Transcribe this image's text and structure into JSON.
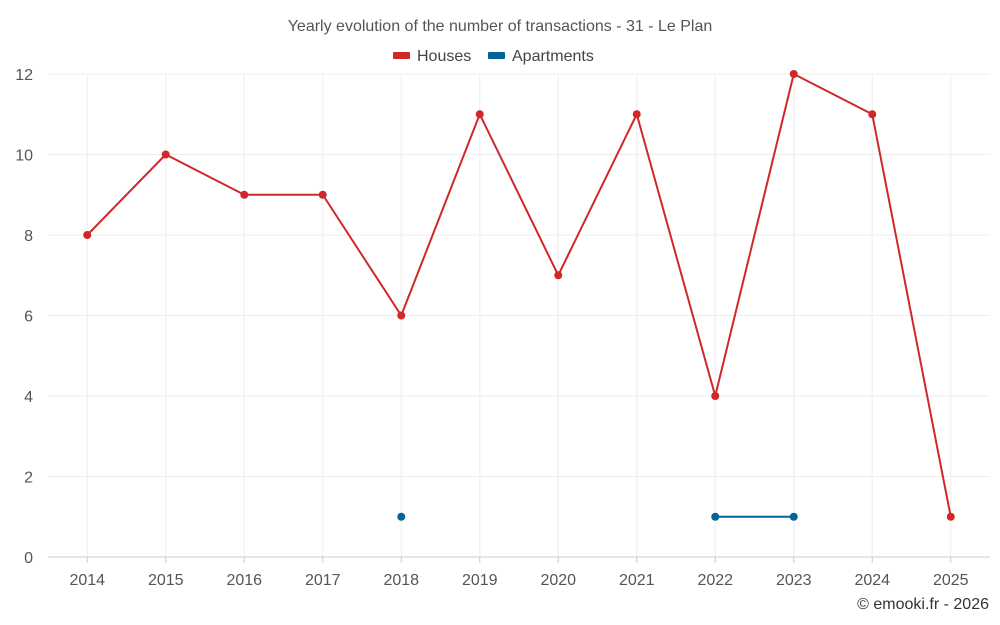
{
  "chart_data": {
    "type": "line",
    "title": "Yearly evolution of the number of transactions - 31 - Le Plan",
    "categories": [
      "2014",
      "2015",
      "2016",
      "2017",
      "2018",
      "2019",
      "2020",
      "2021",
      "2022",
      "2023",
      "2024",
      "2025"
    ],
    "ylim": [
      0,
      12
    ],
    "yticks": [
      0,
      2,
      4,
      6,
      8,
      10,
      12
    ],
    "grid": true,
    "legend_position": "top-center",
    "series": [
      {
        "name": "Houses",
        "color": "#d0282a",
        "values": [
          8,
          10,
          9,
          9,
          6,
          11,
          7,
          11,
          4,
          12,
          11,
          1
        ]
      },
      {
        "name": "Apartments",
        "color": "#036499",
        "values": [
          null,
          null,
          null,
          null,
          1,
          null,
          null,
          null,
          1,
          1,
          null,
          null
        ]
      }
    ]
  },
  "credit": "© emooki.fr - 2026"
}
